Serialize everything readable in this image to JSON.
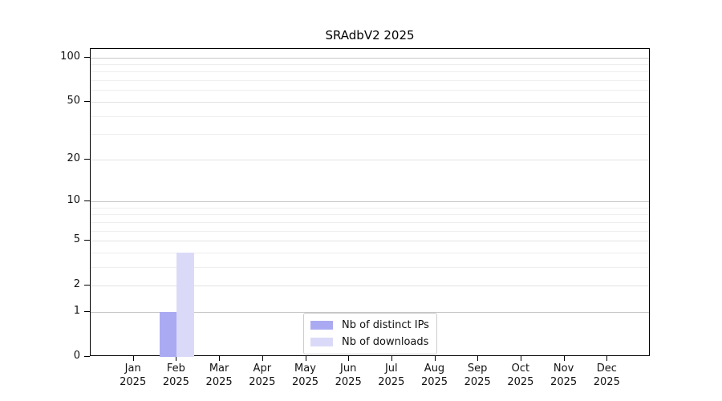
{
  "chart_data": {
    "type": "bar",
    "title": "SRAdbV2 2025",
    "categories": [
      "Jan",
      "Feb",
      "Mar",
      "Apr",
      "May",
      "Jun",
      "Jul",
      "Aug",
      "Sep",
      "Oct",
      "Nov",
      "Dec"
    ],
    "year_label": "2025",
    "series": [
      {
        "name": "Nb of distinct IPs",
        "color": "#aaaaf2",
        "values": [
          0,
          1,
          0,
          0,
          0,
          0,
          0,
          0,
          0,
          0,
          0,
          0
        ]
      },
      {
        "name": "Nb of downloads",
        "color": "#dadaf8",
        "values": [
          0,
          4,
          0,
          0,
          0,
          0,
          0,
          0,
          0,
          0,
          0,
          0
        ]
      }
    ],
    "y_scale": "log1p",
    "y_ticks": [
      0,
      1,
      2,
      5,
      10,
      20,
      50,
      100
    ],
    "y_minor_gridlines": [
      3,
      4,
      6,
      7,
      8,
      9,
      30,
      40,
      60,
      70,
      80,
      90
    ],
    "ylim": [
      0,
      114
    ],
    "grid": "horizontal",
    "legend_position": "lower-center",
    "axis_color": "#000000",
    "text_color": "#111111"
  }
}
